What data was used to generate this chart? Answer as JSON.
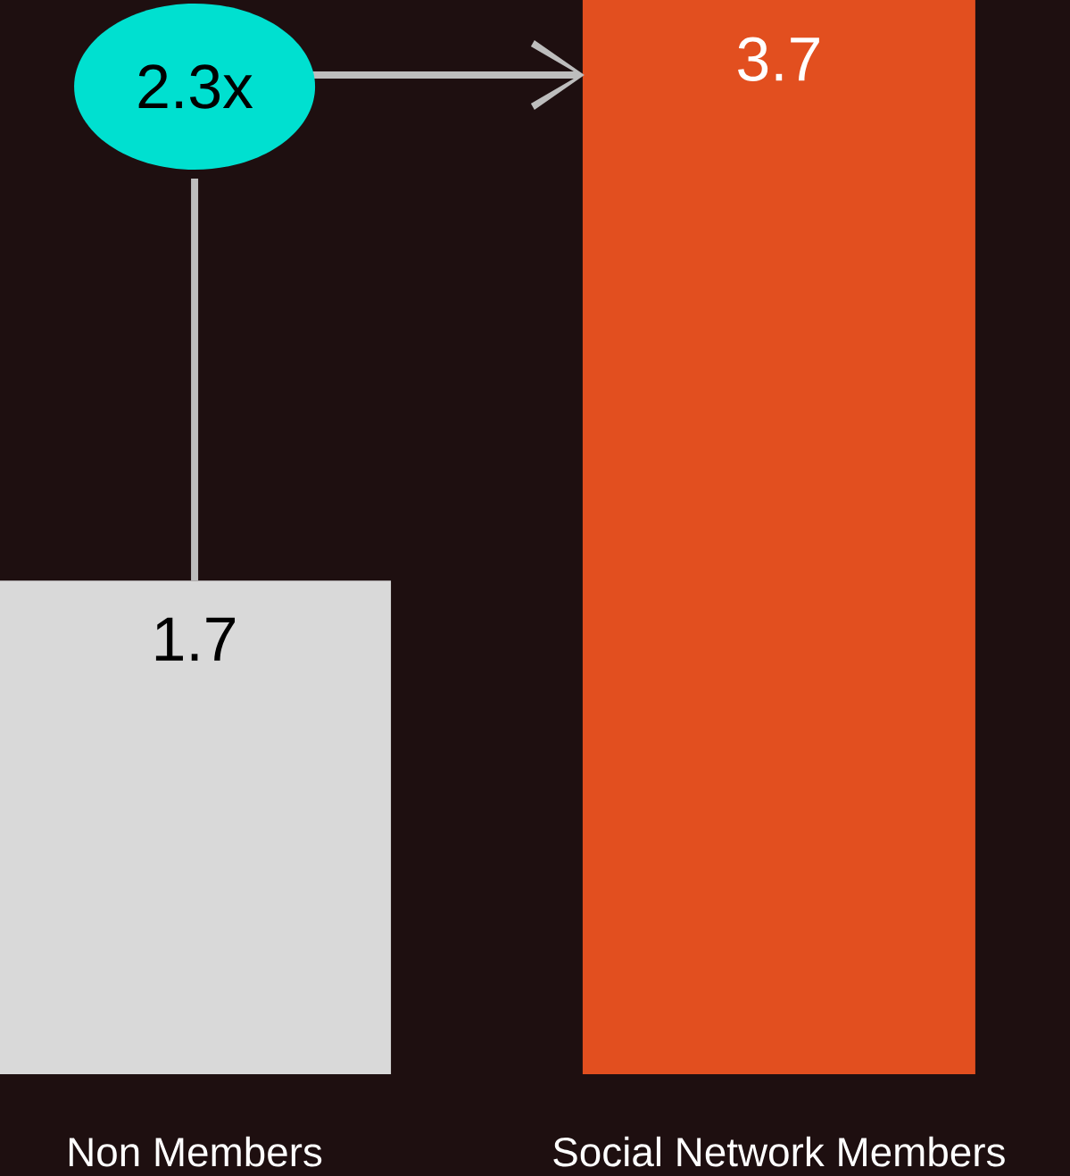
{
  "chart_data": {
    "type": "bar",
    "categories": [
      "Non Members",
      "Social Network Members"
    ],
    "values": [
      1.7,
      3.7
    ],
    "colors": [
      "#d9d9d9",
      "#e24f1f"
    ],
    "data_labels": true,
    "annotations": [
      "2.3x"
    ]
  }
}
